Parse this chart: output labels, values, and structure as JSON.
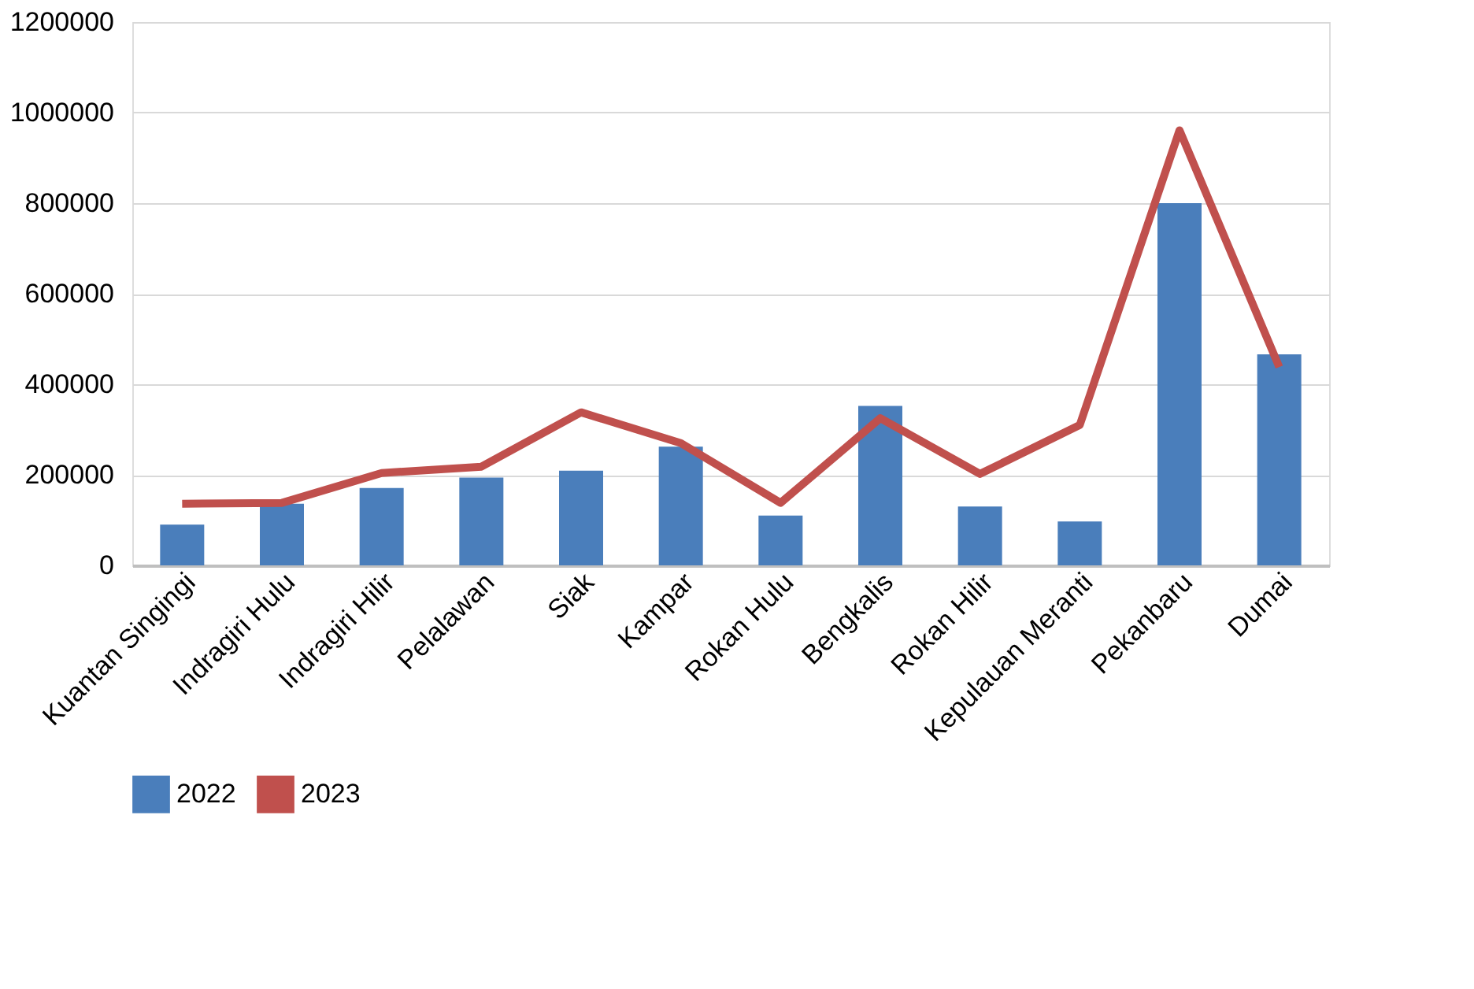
{
  "chart_data": {
    "type": "bar",
    "categories": [
      "Kuantan Singingi",
      "Indragiri Hulu",
      "Indragiri Hilir",
      "Pelalawan",
      "Siak",
      "Kampar",
      "Rokan Hulu",
      "Bengkalis",
      "Rokan Hilir",
      "Kepulauan Meranti",
      "Pekanbaru",
      "Dumai"
    ],
    "series": [
      {
        "name": "2022",
        "color": "#4a7ebb",
        "values": [
          90000,
          136000,
          171000,
          194000,
          209000,
          262000,
          110000,
          352000,
          130000,
          97000,
          800000,
          466000
        ]
      },
      {
        "name": "2023",
        "type": "line",
        "color": "#c0504d",
        "values": [
          136000,
          138000,
          204000,
          218000,
          338000,
          270000,
          138000,
          325000,
          202000,
          310000,
          961000,
          438000
        ]
      }
    ],
    "ylim": [
      0,
      1200000
    ],
    "yticks": [
      0,
      200000,
      400000,
      600000,
      800000,
      1000000,
      1200000
    ],
    "grid": "y",
    "legend": "bottom",
    "marker": "none",
    "line_style": "solid"
  }
}
